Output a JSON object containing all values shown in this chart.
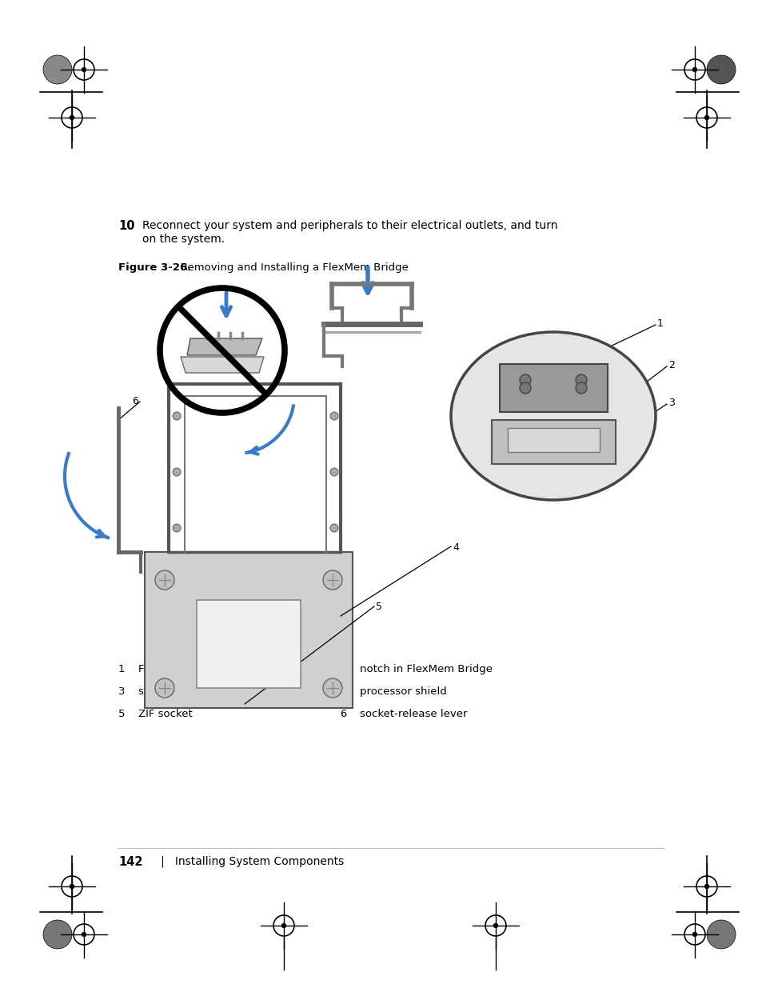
{
  "bg_color": "#ffffff",
  "text_color": "#000000",
  "blue_color": "#3a7bc8",
  "step_number": "10",
  "step_text_line1": "Reconnect your system and peripherals to their electrical outlets, and turn",
  "step_text_line2": "on the system.",
  "figure_label": "Figure 3-26.",
  "figure_title": "Removing and Installing a FlexMem Bridge",
  "legend": [
    [
      "1",
      "FlexMem Bridge",
      "2",
      "notch in FlexMem Bridge"
    ],
    [
      "3",
      "socket key (2)",
      "4",
      "processor shield"
    ],
    [
      "5",
      "ZIF socket",
      "6",
      "socket-release lever"
    ]
  ],
  "page_number": "142",
  "page_footer": "   |   Installing System Components",
  "gray_dark": "#555555",
  "gray_med": "#888888",
  "gray_light": "#cccccc",
  "gray_mid": "#aaaaaa"
}
